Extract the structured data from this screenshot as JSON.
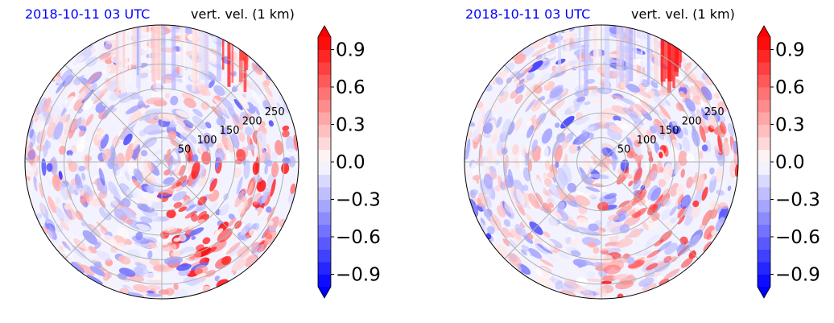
{
  "chart_data": [
    {
      "type": "heatmap",
      "projection": "polar",
      "date_label": "2018-10-11 03 UTC",
      "variable_label": "vert. vel. (1 km)",
      "radial_ticks": [
        "50",
        "100",
        "150",
        "200",
        "250"
      ],
      "radial_range": [
        0,
        280
      ],
      "colorbar": {
        "ticks": [
          "0.9",
          "0.6",
          "0.3",
          "0.0",
          "−0.3",
          "−0.6",
          "−0.9"
        ],
        "range": [
          -1.0,
          1.0
        ],
        "extend": "both",
        "colors": {
          "low": "#0000ff",
          "mid": "#ffffff",
          "high": "#ff0000"
        }
      },
      "grid": true
    },
    {
      "type": "heatmap",
      "projection": "polar",
      "date_label": "2018-10-11 03 UTC",
      "variable_label": "vert. vel. (1 km)",
      "radial_ticks": [
        "50",
        "100",
        "150",
        "200",
        "250"
      ],
      "radial_range": [
        0,
        280
      ],
      "colorbar": {
        "ticks": [
          "0.9",
          "0.6",
          "0.3",
          "0.0",
          "−0.3",
          "−0.6",
          "−0.9"
        ],
        "range": [
          -1.0,
          1.0
        ],
        "extend": "both",
        "colors": {
          "low": "#0000ff",
          "mid": "#ffffff",
          "high": "#ff0000"
        }
      },
      "grid": true
    }
  ],
  "colors": {
    "date_text": "#0000ff",
    "text": "#000000"
  }
}
